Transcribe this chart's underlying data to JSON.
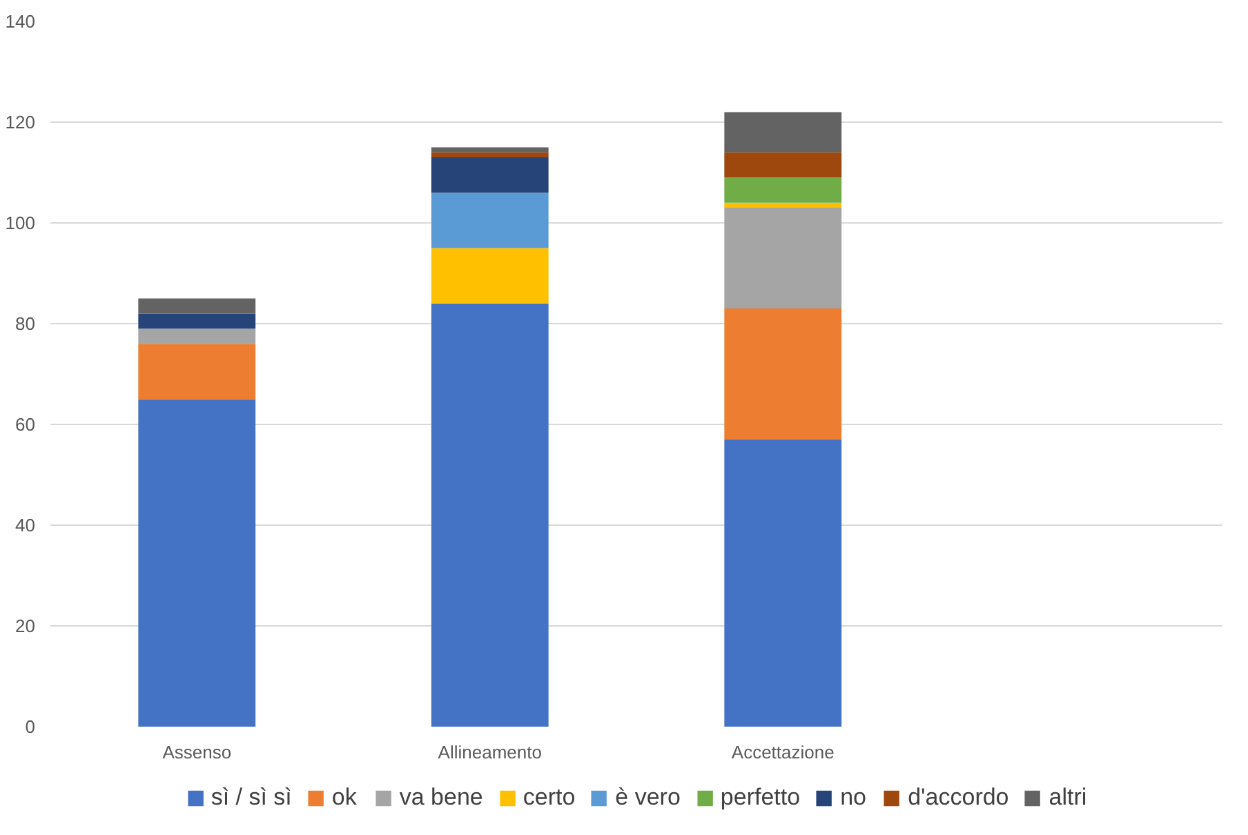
{
  "chart_data": {
    "type": "bar",
    "stacked": true,
    "categories": [
      "Assenso",
      "Allineamento",
      "Accettazione",
      null
    ],
    "series": [
      {
        "name": "sì / sì sì",
        "color": "#4472c4",
        "values": [
          65,
          84,
          57,
          null
        ]
      },
      {
        "name": "ok",
        "color": "#ed7d31",
        "values": [
          11,
          0,
          26,
          null
        ]
      },
      {
        "name": "va bene",
        "color": "#a5a5a5",
        "values": [
          3,
          0,
          20,
          null
        ]
      },
      {
        "name": "certo",
        "color": "#ffc000",
        "values": [
          0,
          11,
          1,
          null
        ]
      },
      {
        "name": "è vero",
        "color": "#5b9bd5",
        "values": [
          0,
          11,
          0,
          null
        ]
      },
      {
        "name": "perfetto",
        "color": "#70ad47",
        "values": [
          0,
          0,
          5,
          null
        ]
      },
      {
        "name": "no",
        "color": "#264478",
        "values": [
          3,
          7,
          0,
          null
        ]
      },
      {
        "name": "d'accordo",
        "color": "#9e480e",
        "values": [
          0,
          1,
          5,
          null
        ]
      },
      {
        "name": "altri",
        "color": "#636363",
        "values": [
          3,
          1,
          8,
          null
        ]
      }
    ],
    "ylim": [
      0,
      140
    ],
    "yticks": [
      0,
      20,
      40,
      60,
      80,
      100,
      120,
      140
    ],
    "grid": "y",
    "legend": "bottom"
  }
}
